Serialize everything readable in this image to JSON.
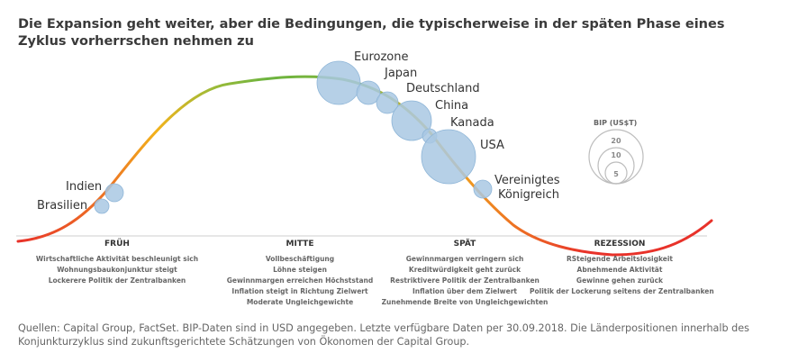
{
  "title": "Die Expansion geht weiter, aber die Bedingungen, die typischerweise in der späten Phase eines Zyklus vorherrschen nehmen zu",
  "countries": [
    {
      "name": "Eurozone",
      "lines": [
        "Eurozone"
      ],
      "gdp_trillion_usd": 13.7,
      "phase": "Spät"
    },
    {
      "name": "Japan",
      "lines": [
        "Japan"
      ],
      "gdp_trillion_usd": 4.9,
      "phase": "Spät"
    },
    {
      "name": "Deutschland",
      "lines": [
        "Deutschland"
      ],
      "gdp_trillion_usd": 4.0,
      "phase": "Spät"
    },
    {
      "name": "China",
      "lines": [
        "China"
      ],
      "gdp_trillion_usd": 12.2,
      "phase": "Spät"
    },
    {
      "name": "Kanada",
      "lines": [
        "Kanada"
      ],
      "gdp_trillion_usd": 1.7,
      "phase": "Spät"
    },
    {
      "name": "USA",
      "lines": [
        "USA"
      ],
      "gdp_trillion_usd": 20.5,
      "phase": "Spät"
    },
    {
      "name": "Vereinigtes Königreich",
      "lines": [
        "Vereinigtes",
        "Königreich"
      ],
      "gdp_trillion_usd": 2.8,
      "phase": "Spät"
    },
    {
      "name": "Indien",
      "lines": [
        "Indien"
      ],
      "gdp_trillion_usd": 2.7,
      "phase": "Früh"
    },
    {
      "name": "Brasilien",
      "lines": [
        "Brasilien"
      ],
      "gdp_trillion_usd": 1.9,
      "phase": "Früh"
    }
  ],
  "legend": {
    "title": "BIP (US$T)",
    "values": [
      20,
      10,
      5
    ]
  },
  "phases": [
    {
      "name": "FRÜH",
      "items": [
        "Wirtschaftliche Aktivität beschleunigt sich",
        "Wohnungsbaukonjunktur steigt",
        "Lockerere Politik der Zentralbanken"
      ]
    },
    {
      "name": "MITTE",
      "items": [
        "Vollbeschäftigung",
        "Löhne steigen",
        "Gewinnmargen erreichen Höchststand",
        "Inflation steigt in Richtung Zielwert",
        "Moderate Ungleichgewichte"
      ]
    },
    {
      "name": "SPÄT",
      "items": [
        "Gewinnmargen verringern sich",
        "Kreditwürdigkeit geht zurück",
        "Restriktivere Politik der Zentralbanken",
        "Inflation über dem Zielwert",
        "Zunehmende Breite von Ungleichgewichten"
      ]
    },
    {
      "name": "REZESSION",
      "items": [
        "RSteigende Arbeitslosigkeit",
        "Abnehmende Aktivität",
        "Gewinne gehen zurück",
        "Politik der Lockerung seitens der Zentralbanken"
      ]
    }
  ],
  "colors": {
    "bubble_fill": "#a9c8e3",
    "bubble_stroke": "#8fb6d8",
    "curve_early": "#e8322a",
    "curve_mid": "#6cb33f",
    "curve_warm": "#f2b21b",
    "axis": "#cfcfcf",
    "legend": "#bdbdbd"
  },
  "source": "Quellen: Capital Group, FactSet. BIP-Daten sind in USD angegeben. Letzte verfügbare Daten per 30.09.2018. Die Länderpositionen innerhalb des Konjunkturzyklus sind zukunftsgerichtete Schätzungen von Ökonomen der Capital Group."
}
